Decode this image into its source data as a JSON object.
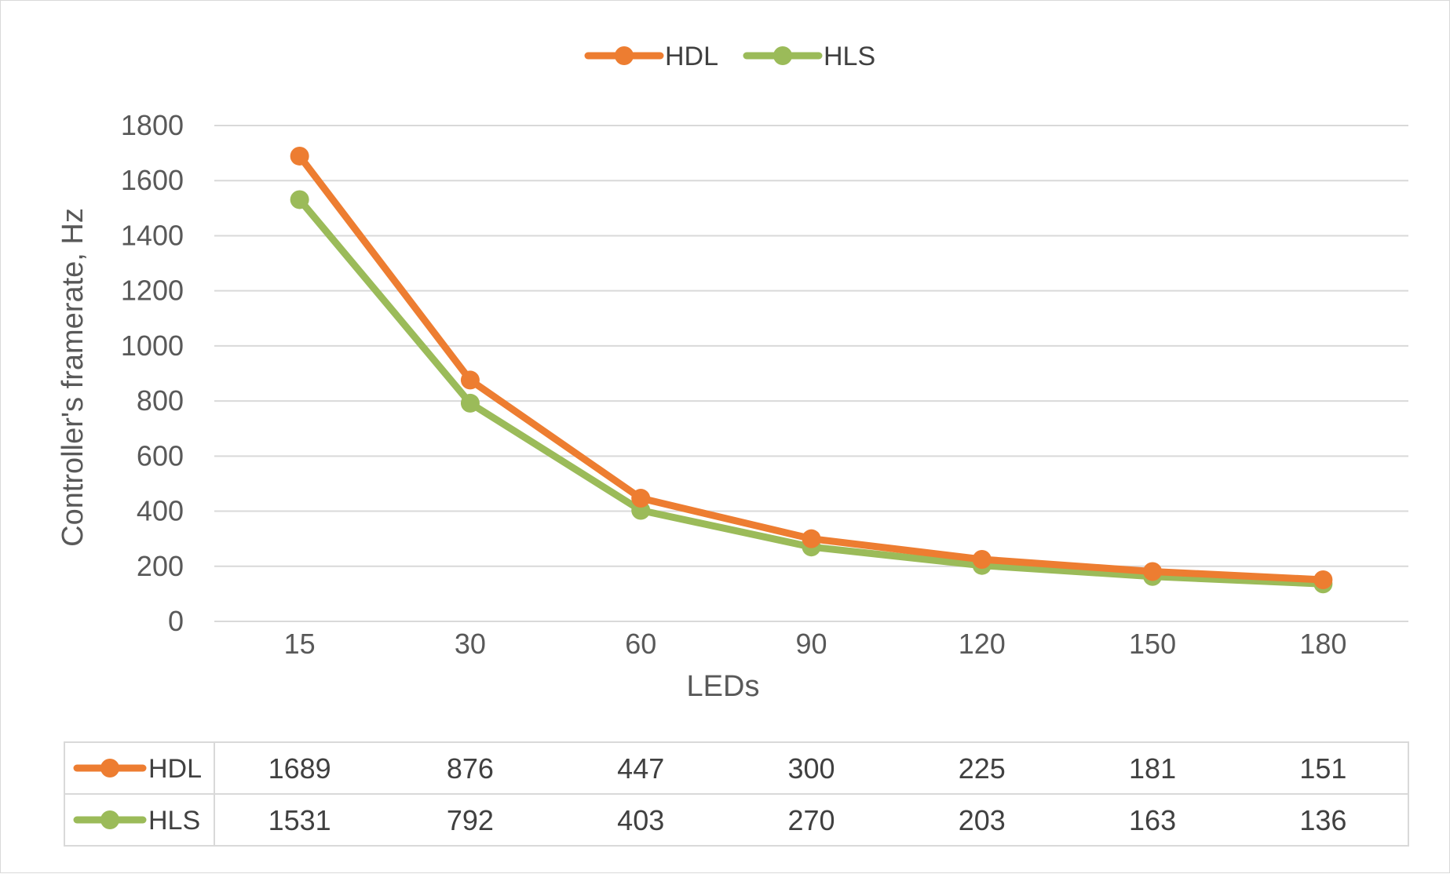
{
  "chart_data": {
    "type": "line",
    "title": "",
    "xlabel": "LEDs",
    "ylabel": "Controller's framerate, Hz",
    "categories": [
      "15",
      "30",
      "60",
      "90",
      "120",
      "150",
      "180"
    ],
    "ylim": [
      0,
      1800
    ],
    "yticks": [
      0,
      200,
      400,
      600,
      800,
      1000,
      1200,
      1400,
      1600,
      1800
    ],
    "grid": true,
    "legend": "top-center",
    "series": [
      {
        "name": "HDL",
        "color": "#ED7D31",
        "values": [
          1689,
          876,
          447,
          300,
          225,
          181,
          151
        ]
      },
      {
        "name": "HLS",
        "color": "#9BBB59",
        "values": [
          1531,
          792,
          403,
          270,
          203,
          163,
          136
        ]
      }
    ],
    "data_table": true
  }
}
